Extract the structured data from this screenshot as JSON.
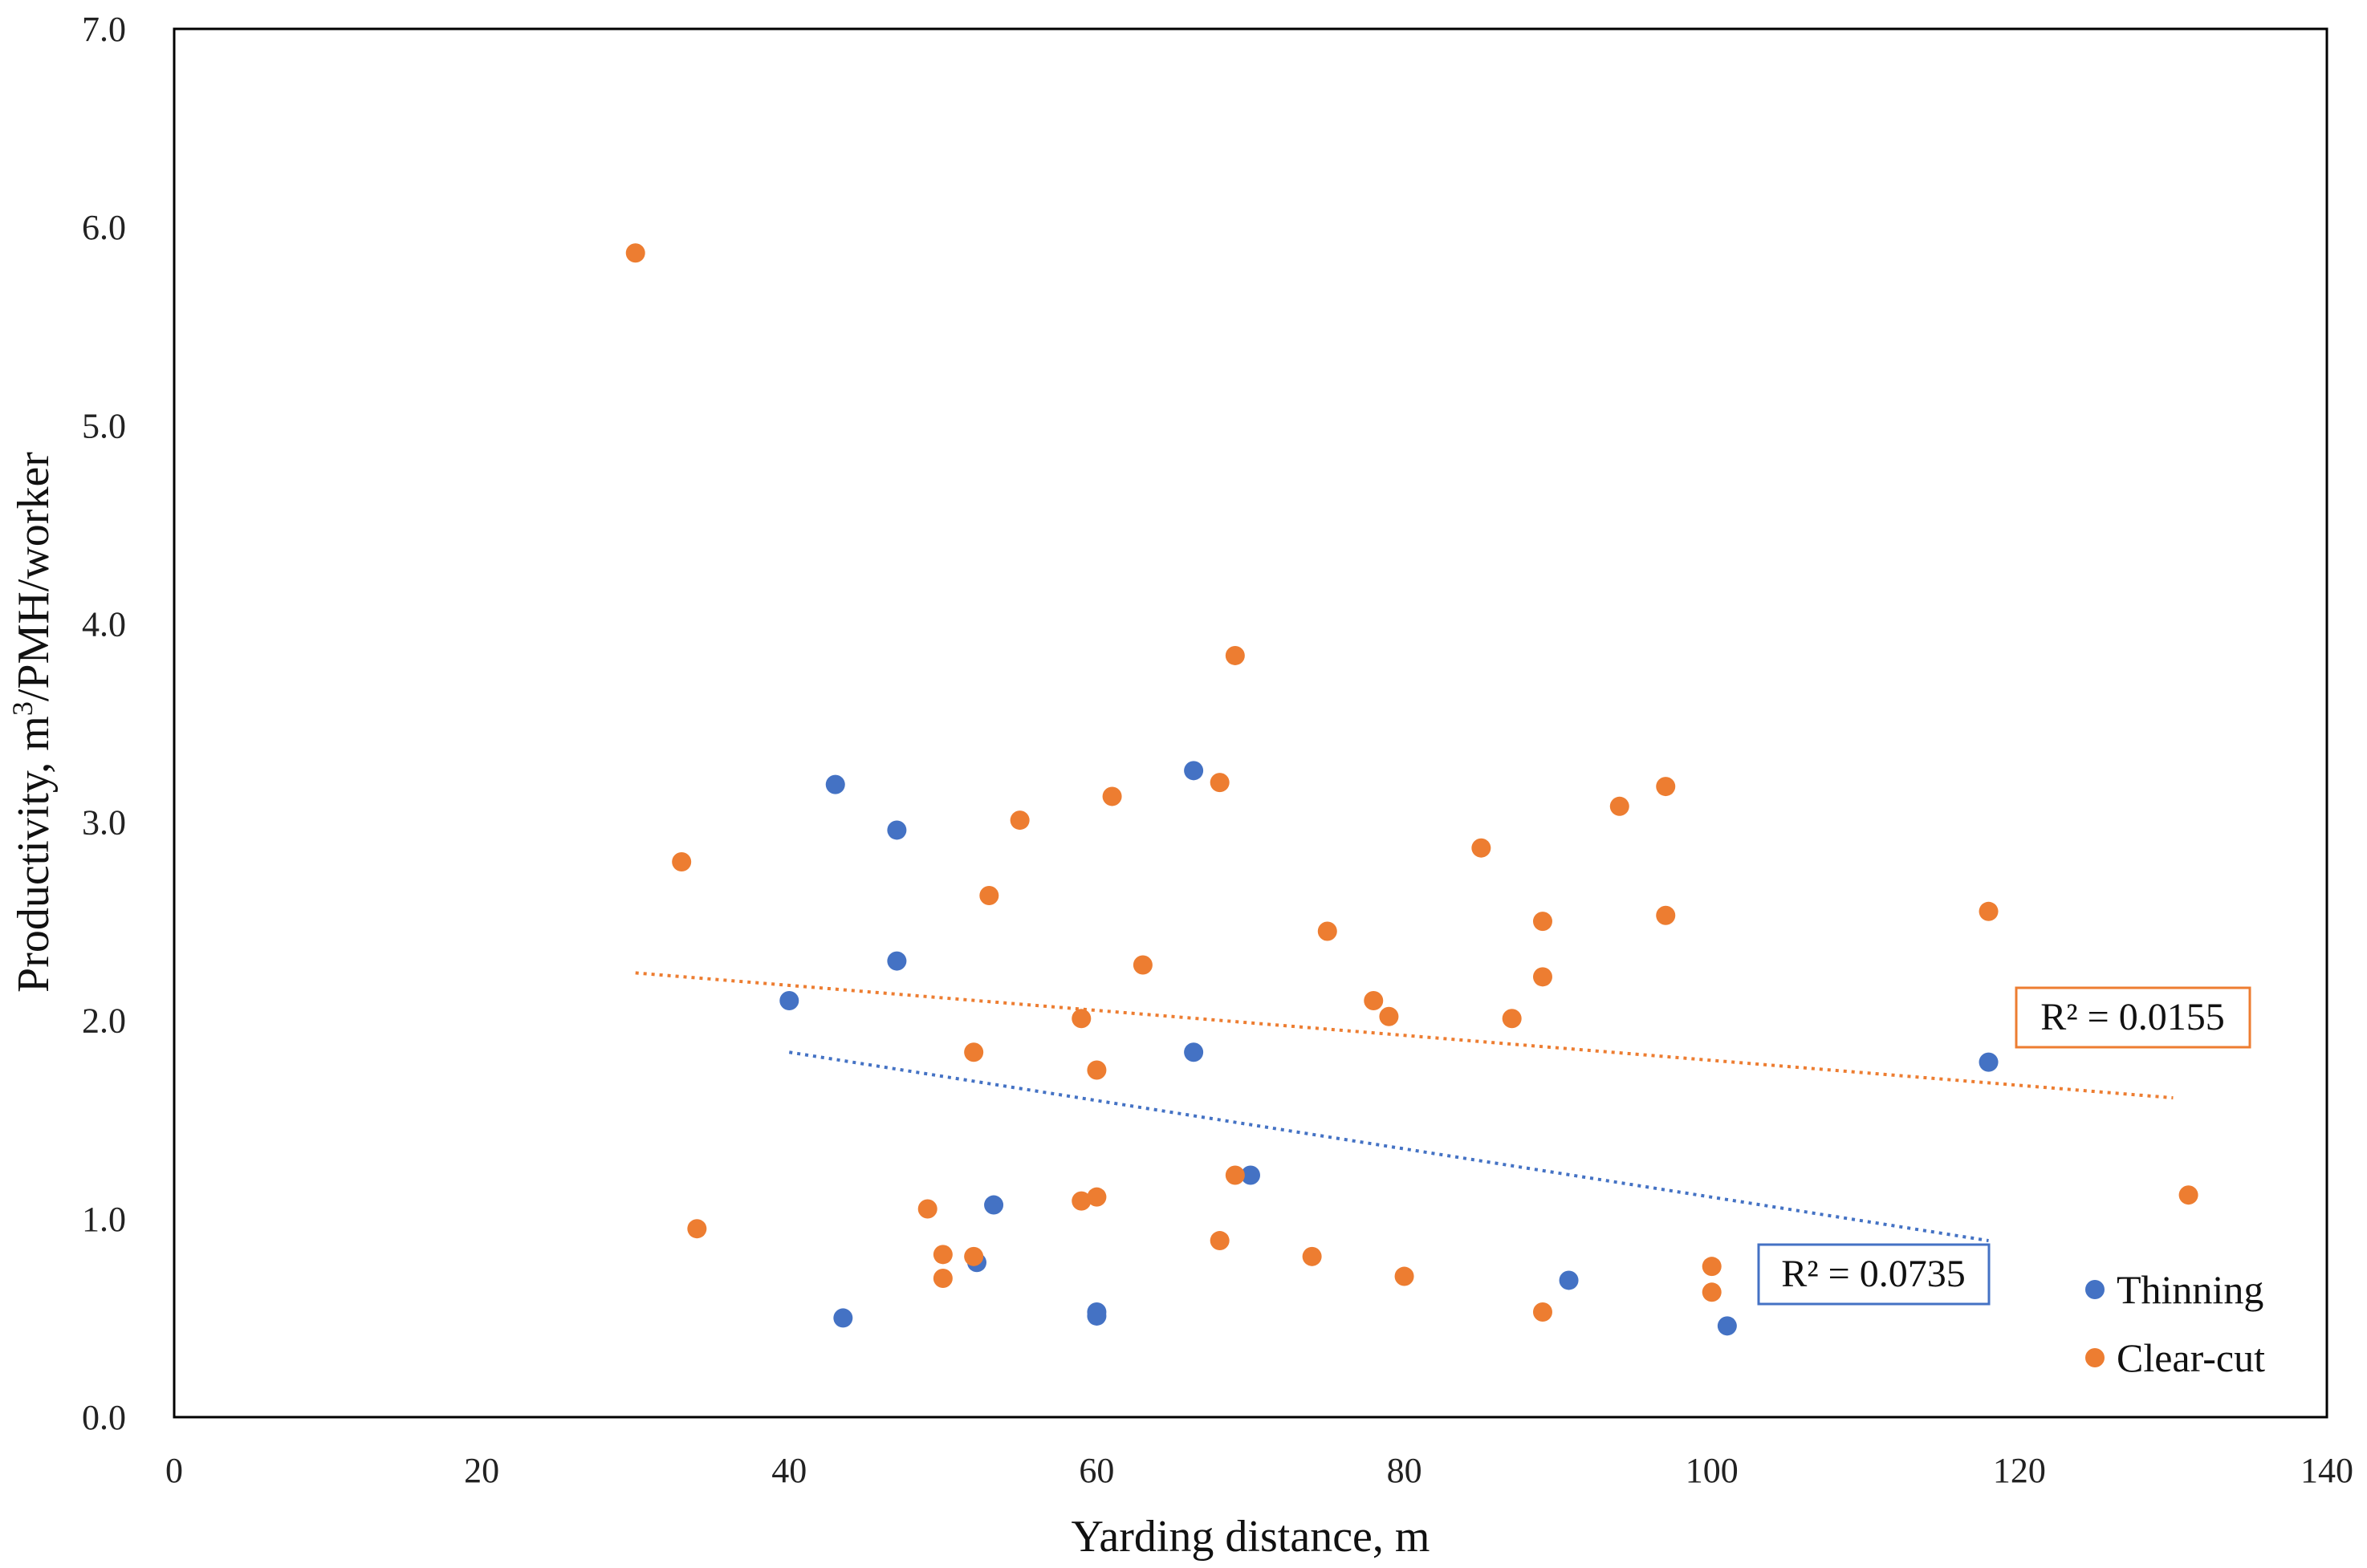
{
  "chart_data": {
    "type": "scatter",
    "title": "",
    "xlabel": "Yarding distance, m",
    "ylabel_parts": {
      "pre": "Productivity, m",
      "sup": "3",
      "post": "/PMH/worker"
    },
    "xlim": [
      0,
      140
    ],
    "ylim": [
      0,
      7
    ],
    "x_ticks": [
      0,
      20,
      40,
      60,
      80,
      100,
      120,
      140
    ],
    "y_ticks": [
      0,
      1,
      2,
      3,
      4,
      5,
      6,
      7
    ],
    "x_tick_labels": [
      "0",
      "20",
      "40",
      "60",
      "80",
      "100",
      "120",
      "140"
    ],
    "y_tick_labels": [
      "0.0",
      "1.0",
      "2.0",
      "3.0",
      "4.0",
      "5.0",
      "6.0",
      "7.0"
    ],
    "grid": false,
    "legend_position": "bottom-right",
    "series": [
      {
        "name": "Thinning",
        "color": "#4472C4",
        "points": [
          [
            40,
            2.1
          ],
          [
            43,
            3.19
          ],
          [
            43.5,
            0.5
          ],
          [
            47,
            2.96
          ],
          [
            47,
            2.3
          ],
          [
            52.2,
            0.78
          ],
          [
            53.3,
            1.07
          ],
          [
            60,
            0.53
          ],
          [
            60,
            0.51
          ],
          [
            66.3,
            3.26
          ],
          [
            66.3,
            1.84
          ],
          [
            70,
            1.22
          ],
          [
            90.7,
            0.69
          ],
          [
            101,
            0.46
          ],
          [
            118,
            1.79
          ]
        ],
        "trendline": {
          "x": [
            40,
            118
          ],
          "y": [
            1.84,
            0.89
          ]
        },
        "r2_label": "R² = 0.0735"
      },
      {
        "name": "Clear-cut",
        "color": "#ED7D31",
        "points": [
          [
            30,
            5.87
          ],
          [
            33,
            2.8
          ],
          [
            34,
            0.95
          ],
          [
            49,
            1.05
          ],
          [
            50,
            0.82
          ],
          [
            50,
            0.7
          ],
          [
            52,
            1.84
          ],
          [
            52,
            0.81
          ],
          [
            53,
            2.63
          ],
          [
            55,
            3.01
          ],
          [
            59,
            2.01
          ],
          [
            59,
            1.09
          ],
          [
            60,
            1.75
          ],
          [
            60,
            1.11
          ],
          [
            61,
            3.13
          ],
          [
            63,
            2.28
          ],
          [
            68,
            3.2
          ],
          [
            68,
            0.89
          ],
          [
            69,
            3.84
          ],
          [
            69,
            1.22
          ],
          [
            74,
            0.81
          ],
          [
            75,
            2.45
          ],
          [
            78,
            2.1
          ],
          [
            79,
            2.02
          ],
          [
            80,
            0.71
          ],
          [
            85,
            2.87
          ],
          [
            87,
            2.01
          ],
          [
            89,
            2.5
          ],
          [
            89,
            2.22
          ],
          [
            89,
            0.53
          ],
          [
            94,
            3.08
          ],
          [
            97,
            3.18
          ],
          [
            97,
            2.53
          ],
          [
            100,
            0.76
          ],
          [
            100,
            0.63
          ],
          [
            118,
            2.55
          ],
          [
            131,
            1.12
          ]
        ],
        "trendline": {
          "x": [
            30,
            130
          ],
          "y": [
            2.24,
            1.61
          ]
        },
        "r2_label": "R² = 0.0155"
      }
    ]
  }
}
